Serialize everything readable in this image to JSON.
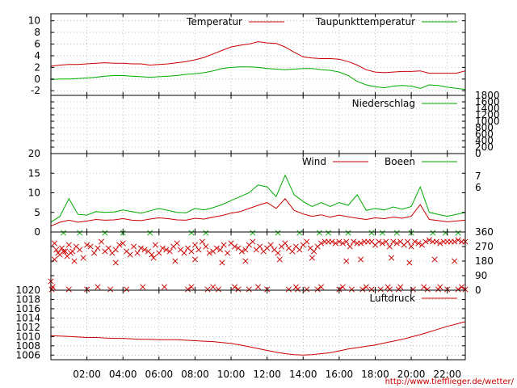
{
  "chart_data": [
    {
      "type": "line",
      "ylim": [
        -2.8,
        11.2
      ],
      "yticks": [
        -2,
        0,
        2,
        4,
        6,
        8,
        10
      ],
      "grid": true,
      "legend": "top-right",
      "series": [
        {
          "name": "Temperatur",
          "color": "#cc0000",
          "x": [
            0,
            0.5,
            1,
            1.5,
            2,
            2.5,
            3,
            3.5,
            4,
            4.5,
            5,
            5.5,
            6,
            6.5,
            7,
            7.5,
            8,
            8.5,
            9,
            9.5,
            10,
            10.5,
            11,
            11.5,
            12,
            12.5,
            13,
            13.5,
            14,
            14.5,
            15,
            15.5,
            16,
            16.5,
            17,
            17.5,
            18,
            18.5,
            19,
            19.5,
            20,
            20.5,
            21,
            21.5,
            22,
            22.5,
            23
          ],
          "values": [
            2.2,
            2.4,
            2.5,
            2.5,
            2.6,
            2.7,
            2.8,
            2.7,
            2.7,
            2.6,
            2.6,
            2.4,
            2.5,
            2.6,
            2.8,
            3.0,
            3.3,
            3.7,
            4.3,
            4.9,
            5.5,
            5.8,
            6.0,
            6.4,
            6.2,
            6.1,
            5.5,
            4.6,
            3.8,
            3.6,
            3.5,
            3.5,
            3.4,
            3.0,
            2.4,
            1.6,
            1.2,
            1.1,
            1.2,
            1.3,
            1.3,
            1.4,
            1.0,
            1.0,
            1.0,
            1.0,
            1.4
          ]
        },
        {
          "name": "Taupunkttemperatur",
          "color": "#00aa00",
          "x": [
            0,
            0.5,
            1,
            1.5,
            2,
            2.5,
            3,
            3.5,
            4,
            4.5,
            5,
            5.5,
            6,
            6.5,
            7,
            7.5,
            8,
            8.5,
            9,
            9.5,
            10,
            10.5,
            11,
            11.5,
            12,
            12.5,
            13,
            13.5,
            14,
            14.5,
            15,
            15.5,
            16,
            16.5,
            17,
            17.5,
            18,
            18.5,
            19,
            19.5,
            20,
            20.5,
            21,
            21.5,
            22,
            22.5,
            23
          ],
          "values": [
            -0.1,
            0.0,
            0.0,
            0.1,
            0.2,
            0.3,
            0.5,
            0.6,
            0.6,
            0.5,
            0.4,
            0.3,
            0.4,
            0.5,
            0.6,
            0.8,
            0.9,
            1.1,
            1.4,
            1.8,
            2.0,
            2.1,
            2.1,
            2.0,
            1.8,
            1.7,
            1.6,
            1.7,
            1.8,
            1.8,
            1.6,
            1.5,
            1.2,
            0.6,
            -0.4,
            -1.0,
            -1.3,
            -1.5,
            -1.2,
            -1.1,
            -1.2,
            -1.6,
            -1.0,
            -1.1,
            -1.4,
            -1.6,
            -1.8
          ]
        }
      ]
    },
    {
      "type": "line",
      "ylim": [
        0,
        1800
      ],
      "yticks": [
        0,
        200,
        400,
        600,
        800,
        1000,
        1200,
        1400,
        1600,
        1800
      ],
      "y2_axis": "right",
      "grid": true,
      "legend": "top-right",
      "series": [
        {
          "name": "Niederschlag",
          "color": "#00aa00",
          "x": [
            0,
            23
          ],
          "values": [
            0,
            0
          ]
        }
      ]
    },
    {
      "type": "line",
      "ylim": [
        0,
        20
      ],
      "yticks": [
        0,
        5,
        10,
        15,
        20
      ],
      "y2_ticks": [
        "7",
        "6"
      ],
      "grid": true,
      "legend": "top-right",
      "series": [
        {
          "name": "Wind",
          "color": "#cc0000",
          "x": [
            0,
            0.5,
            1,
            1.5,
            2,
            2.5,
            3,
            3.5,
            4,
            4.5,
            5,
            5.5,
            6,
            6.5,
            7,
            7.5,
            8,
            8.5,
            9,
            9.5,
            10,
            10.5,
            11,
            11.5,
            12,
            12.5,
            13,
            13.5,
            14,
            14.5,
            15,
            15.5,
            16,
            16.5,
            17,
            17.5,
            18,
            18.5,
            19,
            19.5,
            20,
            20.5,
            21,
            21.5,
            22,
            22.5,
            23
          ],
          "values": [
            1.5,
            2.5,
            3.0,
            2.5,
            2.8,
            3.2,
            3.0,
            3.1,
            3.4,
            3.0,
            2.9,
            3.3,
            3.6,
            3.4,
            3.1,
            3.0,
            3.5,
            3.3,
            3.8,
            4.2,
            4.8,
            5.2,
            6.0,
            6.8,
            7.5,
            6.0,
            8.5,
            5.5,
            4.6,
            4.0,
            4.4,
            3.8,
            4.3,
            3.9,
            3.5,
            3.2,
            3.6,
            3.4,
            3.8,
            3.5,
            4.0,
            7.0,
            3.2,
            2.9,
            2.6,
            2.8,
            3.0
          ]
        },
        {
          "name": "Boeen",
          "color": "#00aa00",
          "x": [
            0,
            0.5,
            1,
            1.5,
            2,
            2.5,
            3,
            3.5,
            4,
            4.5,
            5,
            5.5,
            6,
            6.5,
            7,
            7.5,
            8,
            8.5,
            9,
            9.5,
            10,
            10.5,
            11,
            11.5,
            12,
            12.5,
            13,
            13.5,
            14,
            14.5,
            15,
            15.5,
            16,
            16.5,
            17,
            17.5,
            18,
            18.5,
            19,
            19.5,
            20,
            20.5,
            21,
            21.5,
            22,
            22.5,
            23
          ],
          "values": [
            2.5,
            4.0,
            8.5,
            4.5,
            4.3,
            5.2,
            5.0,
            5.1,
            5.6,
            5.2,
            4.8,
            5.4,
            6.0,
            5.5,
            5.0,
            4.9,
            6.0,
            5.6,
            6.2,
            7.0,
            8.0,
            9.0,
            10.0,
            12.0,
            11.5,
            9.0,
            14.5,
            9.5,
            7.8,
            6.5,
            7.5,
            6.5,
            7.5,
            6.8,
            9.5,
            5.5,
            6.0,
            5.6,
            6.4,
            5.8,
            6.5,
            11.5,
            5.0,
            4.5,
            4.0,
            4.5,
            5.0
          ]
        }
      ]
    },
    {
      "type": "scatter",
      "ylim": [
        0,
        360
      ],
      "yticks": [
        0,
        90,
        180,
        270,
        360
      ],
      "y2_axis": "right",
      "grid": true,
      "series": [
        {
          "name": "",
          "color": "#cc0000",
          "marker": "x",
          "x": [
            0,
            0.2,
            0.3,
            0.4,
            0.5,
            0.6,
            0.7,
            0.8,
            0.9,
            1.0,
            1.1,
            1.2,
            1.4,
            1.6,
            1.8,
            2.0,
            2.2,
            2.4,
            2.6,
            2.8,
            3.0,
            3.2,
            3.4,
            3.6,
            3.8,
            4.0,
            4.2,
            4.4,
            4.6,
            4.8,
            5.0,
            5.2,
            5.4,
            5.6,
            5.8,
            6.0,
            6.2,
            6.4,
            6.6,
            6.8,
            7.0,
            7.2,
            7.4,
            7.6,
            7.8,
            8.0,
            8.2,
            8.4,
            8.6,
            8.8,
            9.0,
            9.2,
            9.4,
            9.6,
            9.8,
            10.0,
            10.2,
            10.4,
            10.6,
            10.8,
            11.0,
            11.2,
            11.4,
            11.6,
            11.8,
            12.0,
            12.2,
            12.4,
            12.6,
            12.8,
            13.0,
            13.2,
            13.4,
            13.6,
            13.8,
            14.0,
            14.2,
            14.4,
            14.6,
            14.8,
            15.0,
            15.2,
            15.4,
            15.6,
            15.8,
            16.0,
            16.2,
            16.4,
            16.6,
            16.8,
            17.0,
            17.2,
            17.4,
            17.6,
            17.8,
            18.0,
            18.2,
            18.4,
            18.6,
            18.8,
            19.0,
            19.2,
            19.4,
            19.6,
            19.8,
            20.0,
            20.2,
            20.4,
            20.6,
            20.8,
            21.0,
            21.2,
            21.4,
            21.6,
            21.8,
            22.0,
            22.2,
            22.4,
            22.6,
            22.8,
            23.0,
            0.05,
            1.0,
            2.0,
            3.3,
            4.2,
            7.6,
            8.7,
            9.3,
            10.4,
            11.0,
            12.0,
            13.2,
            13.7,
            14.2,
            14.8,
            16.0,
            16.7,
            17.3,
            17.8,
            18.3,
            18.8,
            19.3,
            20.1,
            20.9,
            21.5,
            22.0,
            22.6,
            23.0,
            0.1,
            2.6,
            5.1,
            6.3,
            7.8,
            9.0,
            10.2,
            11.5,
            13.6,
            15.0,
            16.2,
            17.5,
            18.7,
            19.4,
            20.7,
            21.6,
            22.8,
            0.2,
            1.3,
            3.6,
            5.7,
            6.9,
            8.0,
            9.5,
            10.8,
            12.7,
            14.5,
            16.4,
            17.2,
            18.9,
            19.9,
            21.3,
            22.4
          ],
          "values": [
            55,
            290,
            250,
            230,
            220,
            260,
            240,
            240,
            210,
            280,
            230,
            240,
            270,
            250,
            200,
            280,
            270,
            230,
            260,
            300,
            240,
            260,
            230,
            250,
            280,
            290,
            240,
            220,
            270,
            230,
            260,
            250,
            240,
            220,
            280,
            230,
            260,
            250,
            240,
            270,
            290,
            250,
            230,
            260,
            240,
            280,
            250,
            300,
            270,
            230,
            240,
            260,
            250,
            280,
            230,
            290,
            270,
            260,
            240,
            250,
            280,
            300,
            250,
            270,
            240,
            260,
            280,
            250,
            230,
            270,
            290,
            260,
            240,
            270,
            250,
            280,
            300,
            260,
            240,
            270,
            290,
            300,
            300,
            300,
            290,
            300,
            290,
            300,
            270,
            300,
            290,
            290,
            300,
            300,
            300,
            280,
            300,
            290,
            300,
            270,
            300,
            290,
            300,
            280,
            300,
            270,
            300,
            290,
            280,
            300,
            310,
            300,
            300,
            290,
            300,
            300,
            300,
            300,
            310,
            300,
            300,
            5,
            5,
            5,
            5,
            5,
            5,
            5,
            5,
            5,
            5,
            5,
            5,
            5,
            5,
            5,
            5,
            5,
            5,
            5,
            5,
            5,
            5,
            5,
            5,
            5,
            5,
            5,
            5,
            20,
            20,
            20,
            20,
            20,
            20,
            20,
            20,
            20,
            20,
            20,
            20,
            20,
            20,
            20,
            20,
            20,
            190,
            180,
            170,
            200,
            180,
            190,
            170,
            180,
            190,
            200,
            180,
            190,
            200,
            170,
            190,
            180
          ]
        },
        {
          "name": "",
          "color": "#00aa00",
          "marker": "x",
          "x": [
            0.7,
            1.6,
            3.0,
            4.0,
            5.5,
            7.8,
            8.6,
            11.2,
            12.6,
            13.8,
            14.9,
            15.4,
            16.5,
            17.8,
            18.4,
            19.2,
            20.0,
            21.2,
            21.9,
            22.6
          ],
          "values": [
            355,
            355,
            355,
            355,
            355,
            355,
            355,
            355,
            355,
            355,
            355,
            355,
            355,
            355,
            355,
            355,
            355,
            355,
            355,
            355
          ]
        }
      ]
    },
    {
      "type": "line",
      "ylim": [
        1005,
        1020
      ],
      "yticks": [
        1006,
        1008,
        1010,
        1012,
        1014,
        1016,
        1018,
        1020
      ],
      "grid": true,
      "legend": "top-right",
      "series": [
        {
          "name": "Luftdruck",
          "color": "#cc0000",
          "x": [
            0,
            0.5,
            1,
            1.5,
            2,
            2.5,
            3,
            3.5,
            4,
            4.5,
            5,
            5.5,
            6,
            6.5,
            7,
            7.5,
            8,
            8.5,
            9,
            9.5,
            10,
            10.5,
            11,
            11.5,
            12,
            12.5,
            13,
            13.5,
            14,
            14.5,
            15,
            15.5,
            16,
            16.5,
            17,
            17.5,
            18,
            18.5,
            19,
            19.5,
            20,
            20.5,
            21,
            21.5,
            22,
            22.5,
            23
          ],
          "values": [
            1010.2,
            1010.1,
            1010.0,
            1009.9,
            1009.8,
            1009.8,
            1009.7,
            1009.6,
            1009.6,
            1009.5,
            1009.4,
            1009.4,
            1009.3,
            1009.3,
            1009.3,
            1009.2,
            1009.1,
            1009.0,
            1008.9,
            1008.7,
            1008.5,
            1008.2,
            1007.8,
            1007.4,
            1007.0,
            1006.6,
            1006.3,
            1006.1,
            1006.0,
            1006.1,
            1006.3,
            1006.5,
            1006.9,
            1007.3,
            1007.6,
            1007.9,
            1008.2,
            1008.6,
            1009.0,
            1009.4,
            1009.9,
            1010.4,
            1011.0,
            1011.6,
            1012.2,
            1012.7,
            1013.2
          ]
        }
      ]
    }
  ],
  "x_axis": {
    "range": [
      0,
      23
    ],
    "ticks": [
      2,
      4,
      6,
      8,
      10,
      12,
      14,
      16,
      18,
      20,
      22
    ],
    "tick_labels": [
      "02:00",
      "04:00",
      "06:00",
      "08:00",
      "10:00",
      "12:00",
      "14:00",
      "16:00",
      "18:00",
      "20:00",
      "22:00"
    ]
  },
  "credit": "http://www.tiefflieger.de/wetter/"
}
